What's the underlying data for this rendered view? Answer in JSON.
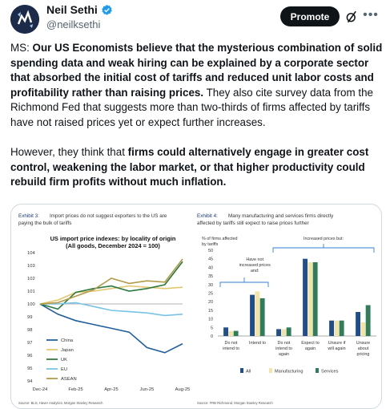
{
  "author": {
    "name": "Neil Sethi",
    "handle": "@neilksethi"
  },
  "header": {
    "promote_label": "Promote",
    "grok_icon": "grok-slash-icon",
    "more_icon": "more-dots-icon"
  },
  "post": {
    "p1_lead": "MS: ",
    "p1_bold": "Our US Economists believe that the mysterious combination of solid spending data and weak hiring can be explained by a corporate sector that absorbed the initial cost of tariffs and reduced unit labor costs and profitability rather than raising prices.",
    "p1_rest": " They also cite survey data from the Richmond Fed that suggests more than two-thirds of firms affected by tariffs have not raised prices yet or expect further increases.",
    "p2_lead": "However, they think that ",
    "p2_bold": "firms could alternatively engage in greater cost control, weakening the labor market, or that higher productivity could rebuild firm profits without much inflation."
  },
  "exhibit3": {
    "caption_num": "Exhibit 3:",
    "caption_text_line1": "Import prices do not suggest exporters to the US are",
    "caption_text_line2": "paying the bulk of tariffs",
    "source": "Source: BLS, Haver Analytics, Morgan Stanley Research"
  },
  "exhibit4": {
    "caption_num": "Exhibit 4:",
    "caption_text_line1": "Many manufacturing and services firms directly",
    "caption_text_line2": "affected by tariffs still expect to raise prices further",
    "source": "Source: FRB Richmond, Morgan Stanley Research"
  },
  "chart_data": [
    {
      "type": "line",
      "title": "US import price indexes: by locality of origin",
      "subtitle": "(All goods, December 2024 = 100)",
      "xlabel": "",
      "ylabel": "",
      "x_ticks": [
        "Dec-24",
        "Feb-25",
        "Apr-25",
        "Jun-25",
        "Aug-25"
      ],
      "y_ticks": [
        94,
        95,
        96,
        97,
        98,
        99,
        100,
        101,
        102,
        103,
        104
      ],
      "ylim": [
        94,
        104
      ],
      "x": [
        "Dec-24",
        "Jan-25",
        "Feb-25",
        "Mar-25",
        "Apr-25",
        "May-25",
        "Jun-25",
        "Jul-25",
        "Aug-25"
      ],
      "grid": false,
      "legend": "bottom-left",
      "series": [
        {
          "name": "China",
          "color": "#1f5f9e",
          "values": [
            100,
            99.2,
            98.7,
            98.4,
            98.1,
            97.8,
            96.6,
            96.2,
            96.9
          ]
        },
        {
          "name": "Japan",
          "color": "#e2c770",
          "values": [
            100,
            100.3,
            100.9,
            101.0,
            101.2,
            101.4,
            101.3,
            101.2,
            101.3
          ]
        },
        {
          "name": "UK",
          "color": "#2d7a3e",
          "values": [
            100,
            99.6,
            100.9,
            101.2,
            101.4,
            101.0,
            101.2,
            101.5,
            103.3
          ]
        },
        {
          "name": "EU",
          "color": "#79c3e6",
          "values": [
            100,
            100.0,
            100.1,
            99.8,
            99.5,
            99.4,
            99.3,
            99.1,
            99.2
          ]
        },
        {
          "name": "ASEAN",
          "color": "#b29a48",
          "values": [
            100,
            100.1,
            100.6,
            101.1,
            102.0,
            101.6,
            101.8,
            101.7,
            103.5
          ]
        }
      ]
    },
    {
      "type": "bar",
      "title": "",
      "ylabel": "% of firms affected by tariffs",
      "ylabel_line1": "% of firms affected",
      "ylabel_line2": "by tariffs",
      "ylim": [
        0,
        50
      ],
      "y_ticks": [
        0,
        5,
        10,
        15,
        20,
        25,
        30,
        35,
        40,
        45,
        50
      ],
      "grid": false,
      "legend": "bottom",
      "categories": [
        [
          "Do not",
          "intend to"
        ],
        [
          "Intend to"
        ],
        [
          "Do not",
          "intend to",
          "again"
        ],
        [
          "Expect to",
          "again"
        ],
        [
          "Unsure if",
          "will again"
        ],
        [
          "Unsure",
          "about",
          "pricing"
        ]
      ],
      "group_labels": [
        {
          "label": [
            "Have not",
            "increased prices",
            "and:"
          ]
        },
        {
          "label": [
            "Increased prices but:"
          ]
        }
      ],
      "series": [
        {
          "name": "All",
          "color": "#1f4e8c",
          "values": [
            5,
            24,
            4,
            45,
            9,
            14
          ]
        },
        {
          "name": "Manufacturing",
          "color": "#f2e3a6",
          "values": [
            3,
            26,
            4,
            43,
            9,
            8
          ]
        },
        {
          "name": "Services",
          "color": "#2f7d5b",
          "values": [
            3,
            22,
            5,
            43,
            9,
            18
          ]
        }
      ]
    }
  ]
}
